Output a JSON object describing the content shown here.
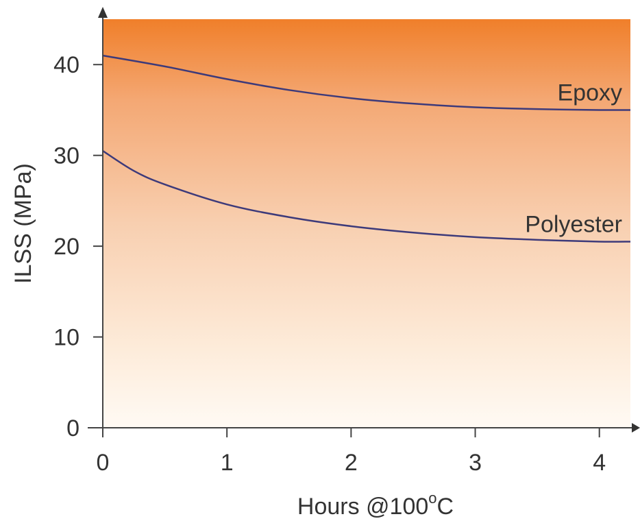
{
  "chart_data": {
    "type": "line",
    "title": "",
    "xlabel": "Hours @100",
    "xlabel_sup": "o",
    "xlabel_suffix": "C",
    "ylabel": "ILSS (MPa)",
    "xlim": [
      0,
      4.25
    ],
    "ylim": [
      0,
      45
    ],
    "xticks": [
      0,
      1,
      2,
      3,
      4
    ],
    "yticks": [
      0,
      10,
      20,
      30,
      40
    ],
    "grid": false,
    "legend": "inline labels at right end of each line",
    "background": "vertical gradient from orange (#f07f2a) at top to near-white (#fffaf4) at bottom",
    "line_color": "#3d3a7a",
    "series": [
      {
        "name": "Epoxy",
        "x": [
          0,
          0.5,
          1,
          1.5,
          2,
          2.5,
          3,
          3.5,
          4,
          4.25
        ],
        "y": [
          41.0,
          39.8,
          38.4,
          37.2,
          36.3,
          35.7,
          35.3,
          35.1,
          35.0,
          35.0
        ]
      },
      {
        "name": "Polyester",
        "x": [
          0,
          0.25,
          0.5,
          1,
          1.5,
          2,
          2.5,
          3,
          3.5,
          4,
          4.25
        ],
        "y": [
          30.5,
          28.3,
          26.8,
          24.6,
          23.2,
          22.2,
          21.5,
          21.0,
          20.7,
          20.5,
          20.5
        ]
      }
    ]
  }
}
